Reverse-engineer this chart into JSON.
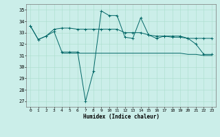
{
  "title": "",
  "xlabel": "Humidex (Indice chaleur)",
  "ylabel": "",
  "bg_color": "#cbeee9",
  "grid_color": "#aaddcc",
  "line_color": "#006666",
  "xlim": [
    -0.5,
    23.5
  ],
  "ylim": [
    26.5,
    35.5
  ],
  "yticks": [
    27,
    28,
    29,
    30,
    31,
    32,
    33,
    34,
    35
  ],
  "xticks": [
    0,
    1,
    2,
    3,
    4,
    5,
    6,
    7,
    8,
    9,
    10,
    11,
    12,
    13,
    14,
    15,
    16,
    17,
    18,
    19,
    20,
    21,
    22,
    23
  ],
  "line1_x": [
    0,
    1,
    2,
    3,
    4,
    5,
    6,
    7,
    8,
    9,
    10,
    11,
    12,
    13,
    14,
    15,
    16,
    17,
    18,
    19,
    20,
    21,
    22,
    23
  ],
  "line1_y": [
    33.6,
    32.4,
    32.7,
    33.3,
    33.4,
    33.4,
    33.3,
    33.3,
    33.3,
    33.3,
    33.3,
    33.3,
    33.0,
    33.0,
    33.0,
    32.8,
    32.7,
    32.7,
    32.6,
    32.6,
    32.5,
    32.5,
    32.5,
    32.5
  ],
  "line2_x": [
    0,
    1,
    2,
    3,
    4,
    5,
    6,
    7,
    8,
    9,
    10,
    11,
    12,
    13,
    14,
    15,
    16,
    17,
    18,
    19,
    20,
    21,
    22,
    23
  ],
  "line2_y": [
    33.6,
    32.4,
    32.7,
    33.1,
    31.3,
    31.3,
    31.3,
    27.0,
    29.6,
    34.9,
    34.5,
    34.5,
    32.6,
    32.5,
    34.3,
    32.8,
    32.5,
    32.7,
    32.7,
    32.7,
    32.5,
    32.0,
    31.1,
    31.1
  ],
  "line3_x": [
    4,
    5,
    6,
    7,
    8,
    9,
    10,
    11,
    12,
    13,
    14,
    15,
    16,
    17,
    18,
    19,
    20,
    21,
    22,
    23
  ],
  "line3_y": [
    31.2,
    31.2,
    31.2,
    31.2,
    31.2,
    31.2,
    31.2,
    31.2,
    31.2,
    31.2,
    31.2,
    31.2,
    31.2,
    31.2,
    31.2,
    31.2,
    31.1,
    31.1,
    31.0,
    31.0
  ]
}
